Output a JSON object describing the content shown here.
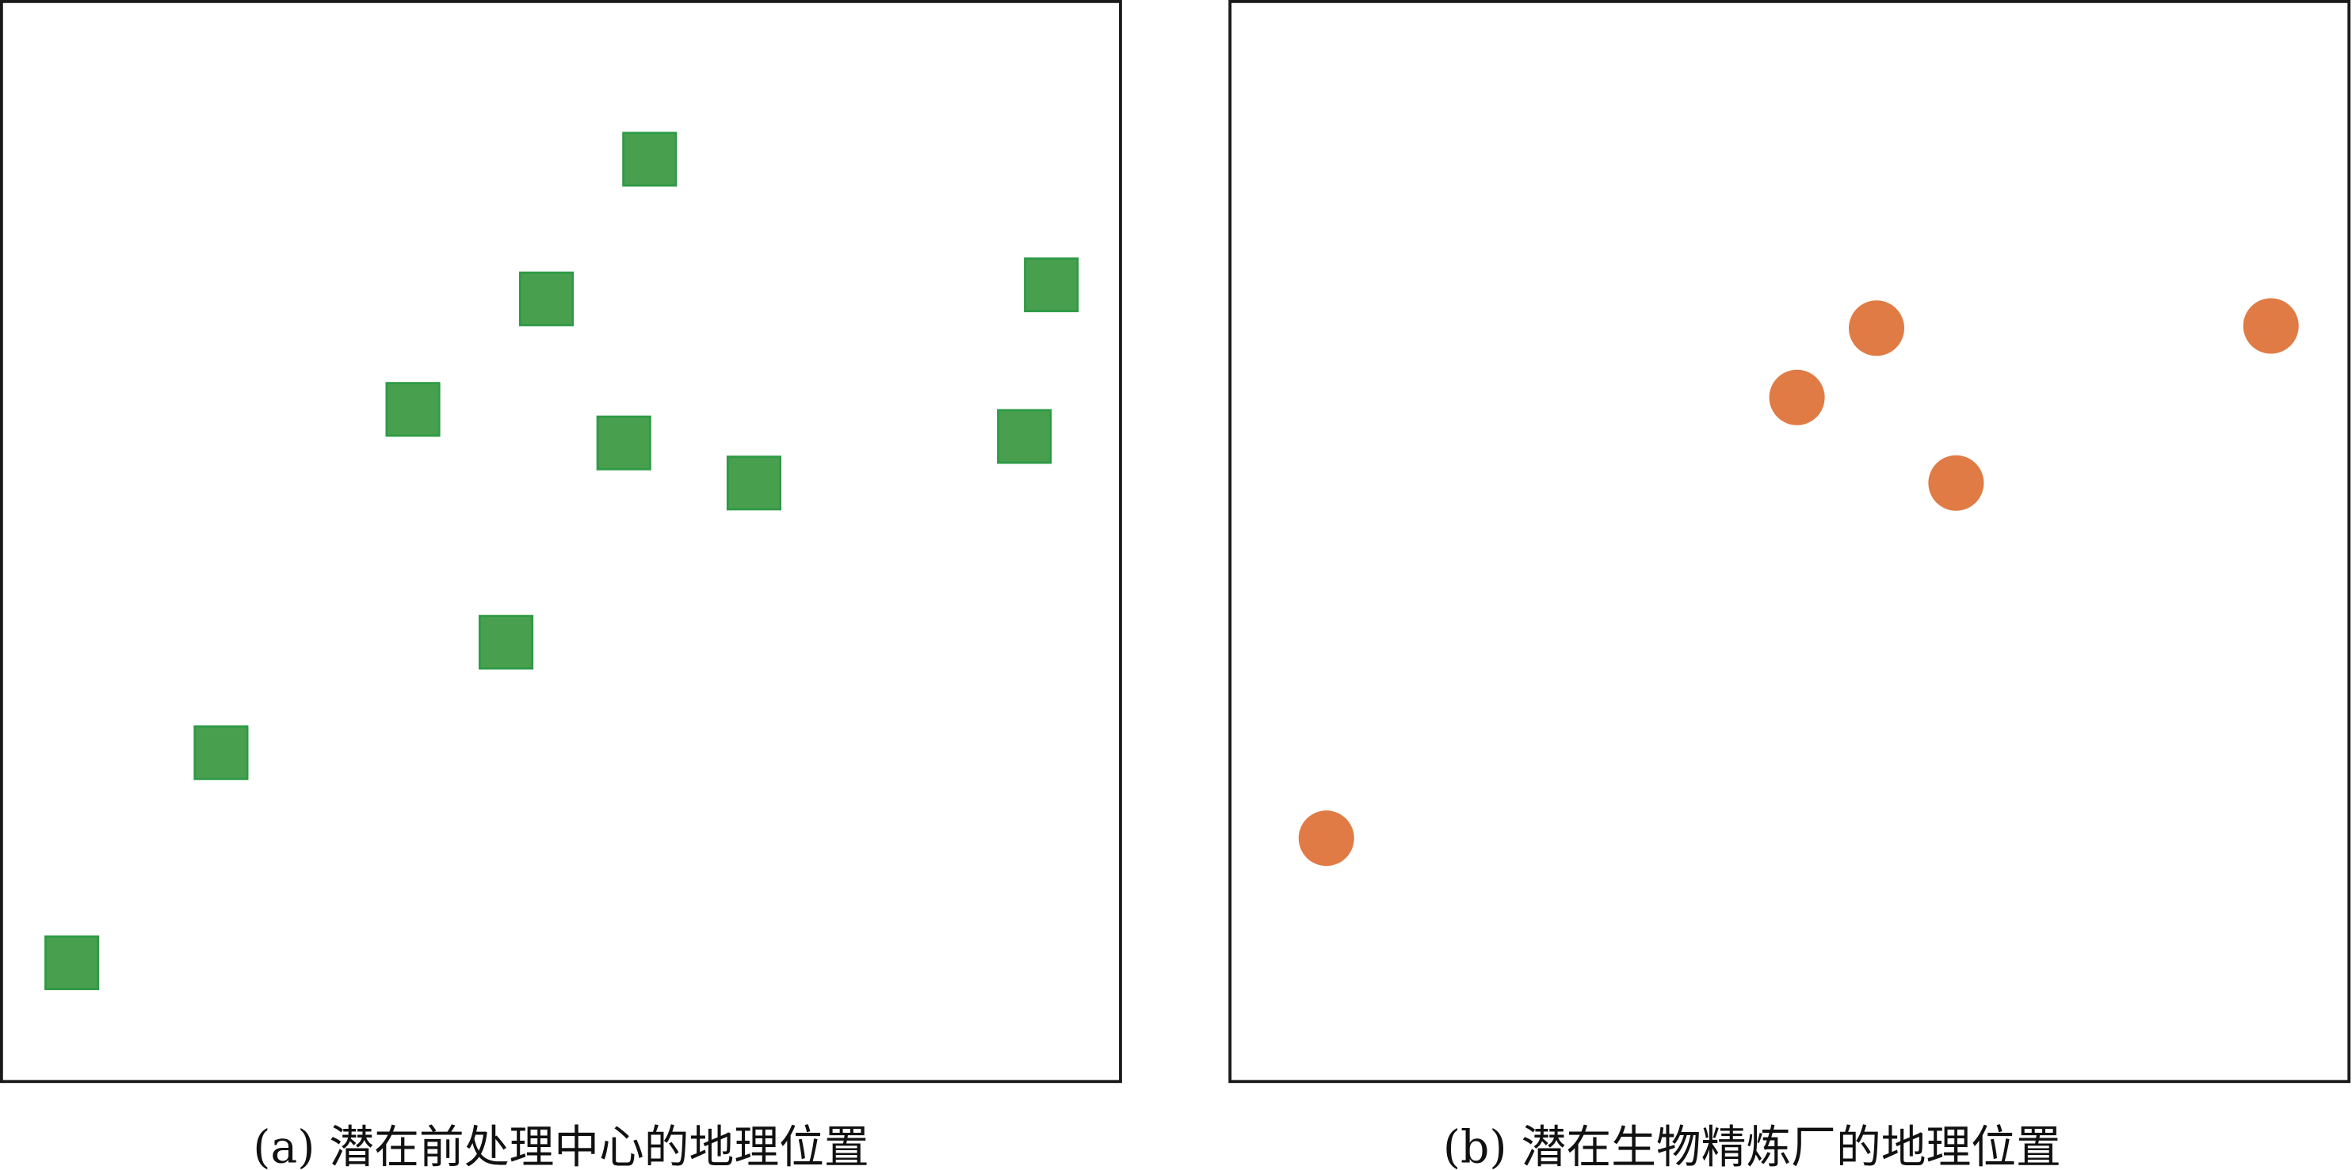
{
  "chart_data": [
    {
      "type": "scatter",
      "caption": "(a) 潜在前处理中心的地理位置",
      "marker": "square",
      "color": "#48a04f",
      "edge_color": "#2f9a46",
      "xlim": [
        0,
        100
      ],
      "ylim": [
        0,
        100
      ],
      "grid": false,
      "axes_ticks": false,
      "points": [
        {
          "x": 57.9,
          "y": 85.3
        },
        {
          "x": 48.7,
          "y": 72.4
        },
        {
          "x": 93.7,
          "y": 73.7
        },
        {
          "x": 36.8,
          "y": 62.2
        },
        {
          "x": 55.6,
          "y": 59.1
        },
        {
          "x": 67.2,
          "y": 55.4
        },
        {
          "x": 91.3,
          "y": 59.7
        },
        {
          "x": 45.1,
          "y": 40.7
        },
        {
          "x": 19.7,
          "y": 30.5
        },
        {
          "x": 6.4,
          "y": 11.1
        }
      ]
    },
    {
      "type": "scatter",
      "caption": "(b) 潜在生物精炼厂的地理位置",
      "marker": "circle",
      "color": "#e07b45",
      "xlim": [
        0,
        100
      ],
      "ylim": [
        0,
        100
      ],
      "grid": false,
      "axes_ticks": false,
      "points": [
        {
          "x": 57.7,
          "y": 69.7
        },
        {
          "x": 50.6,
          "y": 63.3
        },
        {
          "x": 92.9,
          "y": 69.9
        },
        {
          "x": 64.8,
          "y": 55.4
        },
        {
          "x": 8.6,
          "y": 22.6
        }
      ]
    }
  ]
}
